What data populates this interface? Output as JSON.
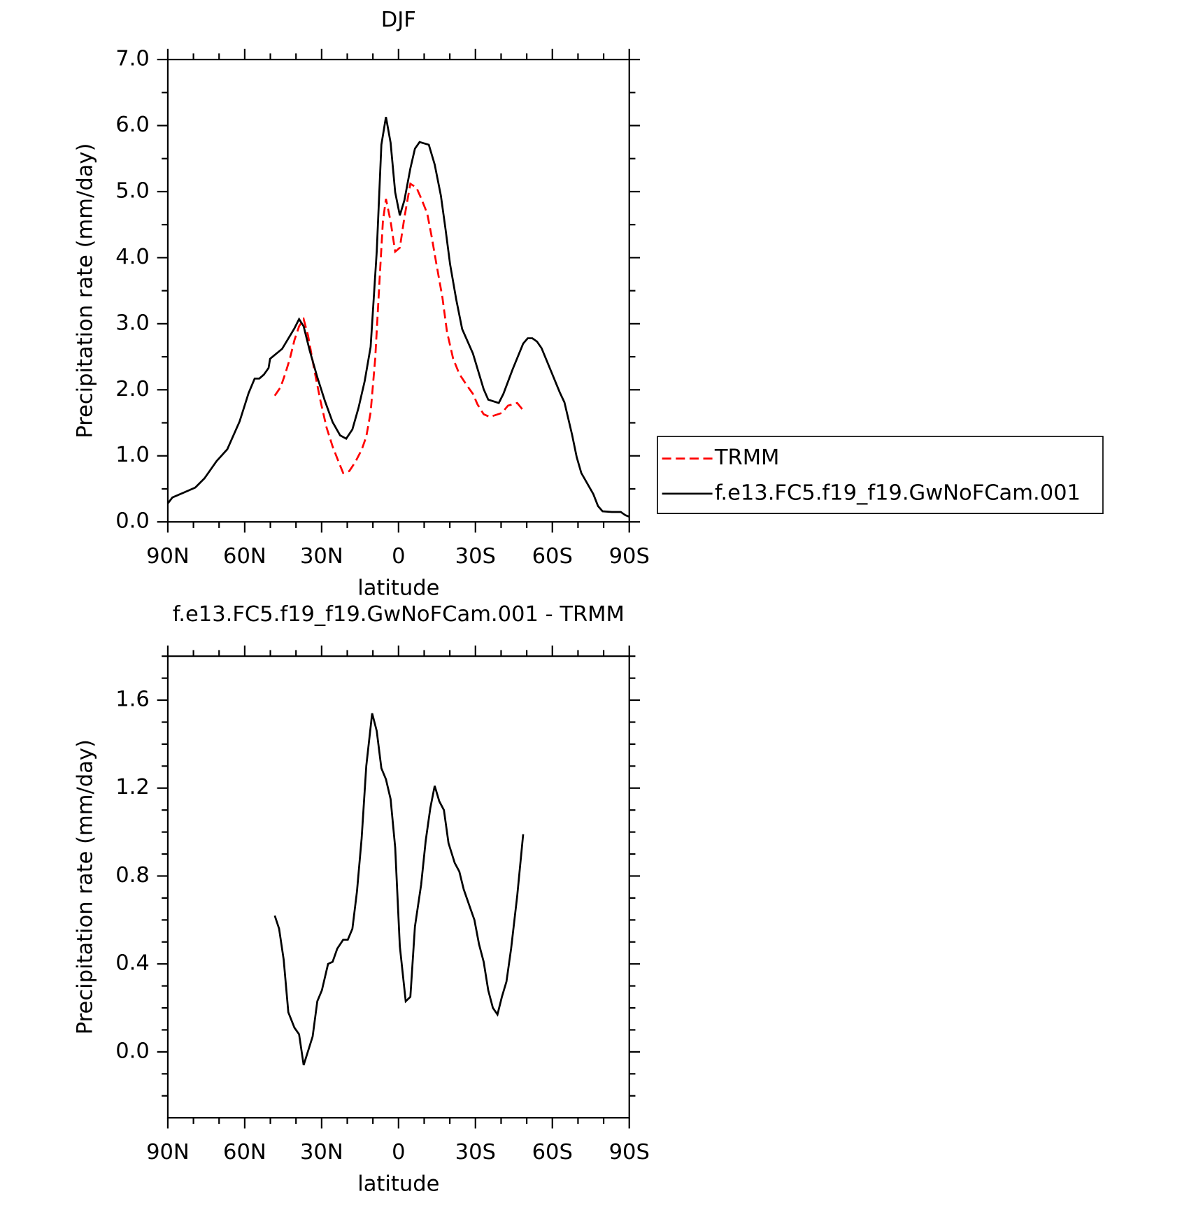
{
  "chart_data": [
    {
      "type": "line",
      "title": "DJF",
      "x_label": "latitude",
      "y_label": "Precipitation rate (mm/day)",
      "xlim": [
        90,
        -90
      ],
      "xticks": [
        {
          "value": 90,
          "label": "90N"
        },
        {
          "value": 60,
          "label": "60N"
        },
        {
          "value": 30,
          "label": "30N"
        },
        0,
        {
          "value": -30,
          "label": "30S"
        },
        {
          "value": -60,
          "label": "60S"
        },
        {
          "value": -90,
          "label": "90S"
        }
      ],
      "ylim": [
        0,
        7
      ],
      "yticks": [
        {
          "value": 0,
          "label": "0.0"
        },
        {
          "value": 1,
          "label": "1.0"
        },
        {
          "value": 2,
          "label": "2.0"
        },
        {
          "value": 3,
          "label": "3.0"
        },
        {
          "value": 4,
          "label": "4.0"
        },
        {
          "value": 5,
          "label": "5.0"
        },
        {
          "value": 6,
          "label": "6.0"
        },
        {
          "value": 7,
          "label": "7.0"
        }
      ],
      "legend": "right",
      "series": [
        {
          "name": "TRMM",
          "color": "#ff0000",
          "dashed": true,
          "x": [
            48.3,
            46.0,
            44.2,
            42.4,
            40.6,
            38.8,
            37.0,
            35.3,
            32.9,
            30.5,
            28.1,
            25.7,
            23.4,
            21.6,
            19.2,
            16.8,
            14.4,
            12.6,
            10.9,
            9.1,
            7.3,
            6.1,
            4.9,
            3.1,
            1.3,
            -0.5,
            -2.3,
            -4.6,
            -7.0,
            -8.8,
            -11.2,
            -12.9,
            -14.7,
            -17.1,
            -18.9,
            -21.3,
            -23.7,
            -26.6,
            -29.0,
            -30.8,
            -33.2,
            -35.6,
            -38.0,
            -40.3,
            -42.7,
            -44.5,
            -46.3,
            -48.6
          ],
          "values": [
            1.91,
            2.04,
            2.24,
            2.47,
            2.75,
            2.96,
            3.07,
            2.82,
            2.31,
            1.84,
            1.43,
            1.14,
            0.91,
            0.74,
            0.77,
            0.91,
            1.09,
            1.29,
            1.66,
            2.47,
            3.74,
            4.55,
            4.89,
            4.55,
            4.09,
            4.15,
            4.61,
            5.12,
            5.06,
            4.9,
            4.67,
            4.32,
            3.92,
            3.4,
            2.88,
            2.47,
            2.24,
            2.07,
            1.94,
            1.78,
            1.63,
            1.59,
            1.62,
            1.65,
            1.76,
            1.78,
            1.8,
            1.69
          ]
        },
        {
          "name": "f.e13.FC5.f19_f19.GwNoFCam.001",
          "color": "#000000",
          "dashed": false,
          "x": [
            90,
            88.2,
            84.0,
            79.3,
            75.7,
            71.0,
            66.8,
            62.0,
            58.5,
            56.1,
            54.3,
            52.5,
            50.7,
            50.1,
            45.4,
            40.6,
            38.8,
            37.0,
            34.7,
            31.7,
            28.7,
            25.7,
            22.8,
            20.4,
            18.0,
            15.6,
            13.2,
            10.9,
            9.7,
            8.5,
            6.7,
            4.9,
            3.1,
            1.3,
            -0.5,
            -2.3,
            -4.6,
            -6.4,
            -8.2,
            -11.8,
            -14.1,
            -16.5,
            -18.3,
            -20.1,
            -22.5,
            -24.8,
            -29.0,
            -33.2,
            -35.0,
            -39.1,
            -40.9,
            -44.5,
            -48.6,
            -50.4,
            -52.2,
            -54.0,
            -55.8,
            -59.4,
            -62.9,
            -64.7,
            -67.7,
            -69.5,
            -71.3,
            -76.0,
            -77.8,
            -79.6,
            -83.2,
            -86.7,
            -88.5,
            -90
          ],
          "values": [
            0.28,
            0.37,
            0.44,
            0.52,
            0.66,
            0.92,
            1.1,
            1.52,
            1.95,
            2.17,
            2.17,
            2.23,
            2.33,
            2.47,
            2.62,
            2.93,
            3.07,
            2.96,
            2.6,
            2.19,
            1.83,
            1.51,
            1.31,
            1.26,
            1.4,
            1.73,
            2.13,
            2.65,
            3.37,
            4.09,
            5.71,
            6.13,
            5.74,
            4.99,
            4.64,
            4.87,
            5.35,
            5.65,
            5.75,
            5.71,
            5.41,
            4.94,
            4.44,
            3.9,
            3.37,
            2.92,
            2.55,
            2.01,
            1.85,
            1.8,
            1.94,
            2.31,
            2.7,
            2.78,
            2.78,
            2.73,
            2.63,
            2.29,
            1.96,
            1.81,
            1.32,
            0.98,
            0.74,
            0.42,
            0.24,
            0.16,
            0.15,
            0.15,
            0.1,
            0.08
          ]
        }
      ]
    },
    {
      "type": "line",
      "title": "f.e13.FC5.f19_f19.GwNoFCam.001 - TRMM",
      "x_label": "latitude",
      "y_label": "Precipitation rate (mm/day)",
      "xlim": [
        90,
        -90
      ],
      "xticks": [
        {
          "value": 90,
          "label": "90N"
        },
        {
          "value": 60,
          "label": "60N"
        },
        {
          "value": 30,
          "label": "30N"
        },
        0,
        {
          "value": -30,
          "label": "30S"
        },
        {
          "value": -60,
          "label": "60S"
        },
        {
          "value": -90,
          "label": "90S"
        }
      ],
      "ylim": [
        -0.3,
        1.8
      ],
      "yticks": [
        {
          "value": 0,
          "label": "0.0"
        },
        0.4,
        0.8,
        1.2,
        1.6
      ],
      "series": [
        {
          "color": "#000000",
          "dashed": false,
          "x": [
            48.3,
            46.6,
            44.8,
            43.0,
            40.6,
            38.8,
            37.0,
            33.5,
            31.7,
            29.9,
            27.5,
            25.7,
            23.9,
            21.6,
            19.8,
            18.0,
            16.2,
            14.4,
            12.6,
            10.3,
            8.5,
            6.7,
            4.9,
            3.1,
            1.3,
            -0.5,
            -2.8,
            -4.6,
            -6.4,
            -8.8,
            -10.6,
            -12.4,
            -14.1,
            -15.9,
            -17.7,
            -19.5,
            -21.9,
            -23.7,
            -25.4,
            -27.8,
            -29.6,
            -31.4,
            -33.2,
            -35.0,
            -36.8,
            -38.6,
            -40.3,
            -42.1,
            -43.9,
            -46.3,
            -48.6
          ],
          "values": [
            0.62,
            0.56,
            0.42,
            0.18,
            0.11,
            0.08,
            -0.06,
            0.07,
            0.23,
            0.28,
            0.4,
            0.41,
            0.47,
            0.51,
            0.51,
            0.56,
            0.73,
            0.97,
            1.3,
            1.54,
            1.46,
            1.29,
            1.24,
            1.15,
            0.93,
            0.48,
            0.23,
            0.25,
            0.57,
            0.76,
            0.96,
            1.11,
            1.21,
            1.14,
            1.1,
            0.95,
            0.86,
            0.82,
            0.74,
            0.66,
            0.6,
            0.49,
            0.41,
            0.28,
            0.2,
            0.17,
            0.25,
            0.32,
            0.47,
            0.71,
            0.99
          ]
        }
      ]
    }
  ]
}
